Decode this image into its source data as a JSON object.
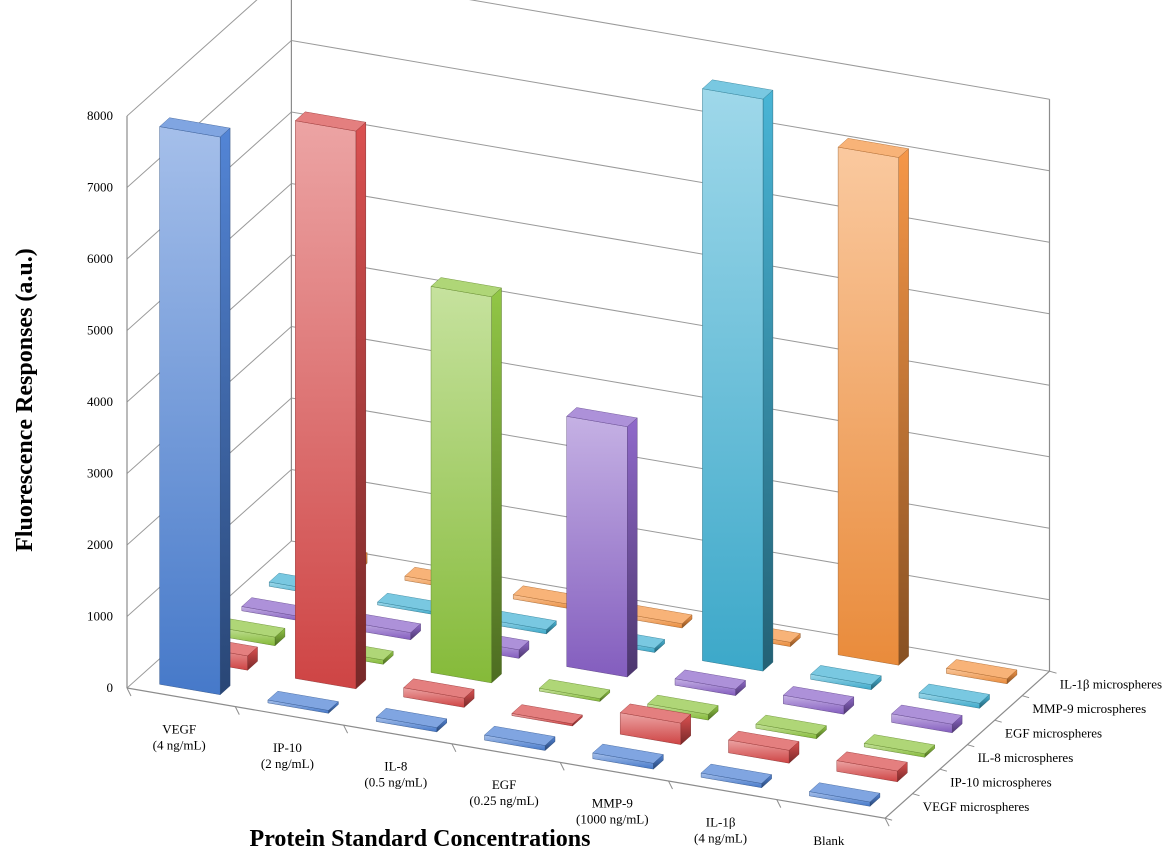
{
  "chart_data": {
    "type": "bar3d",
    "ylabel": "Fluorescence Responses (a.u.)",
    "xlabel": "Protein Standard Concentrations",
    "ylim": [
      0,
      8000
    ],
    "yticks": [
      "0",
      "1000",
      "2000",
      "3000",
      "4000",
      "5000",
      "6000",
      "7000",
      "8000"
    ],
    "grid": true,
    "categories": [
      {
        "line1": "VEGF",
        "line2": "(4 ng/mL)"
      },
      {
        "line1": "IP-10",
        "line2": "(2 ng/mL)"
      },
      {
        "line1": "IL-8",
        "line2": "(0.5 ng/mL)"
      },
      {
        "line1": "EGF",
        "line2": "(0.25 ng/mL)"
      },
      {
        "line1": "MMP-9",
        "line2": "(1000 ng/mL)"
      },
      {
        "line1": "IL-1β",
        "line2": "(4 ng/mL)"
      },
      {
        "line1": "Blank",
        "line2": ""
      }
    ],
    "series": [
      {
        "name": "VEGF microspheres",
        "color": "#4a7fd4",
        "values": [
          7800,
          40,
          60,
          70,
          80,
          60,
          60
        ]
      },
      {
        "name": "IP-10 microspheres",
        "color": "#d94848",
        "values": [
          200,
          7800,
          130,
          30,
          300,
          180,
          150
        ]
      },
      {
        "name": "IL-8 microspheres",
        "color": "#8cc43c",
        "values": [
          120,
          60,
          5400,
          40,
          80,
          60,
          50
        ]
      },
      {
        "name": "EGF microspheres",
        "color": "#8a62c8",
        "values": [
          60,
          100,
          120,
          3500,
          90,
          120,
          120
        ]
      },
      {
        "name": "MMP-9 microspheres",
        "color": "#3fb1d4",
        "values": [
          60,
          40,
          60,
          60,
          8000,
          70,
          70
        ]
      },
      {
        "name": "IL-1β microspheres",
        "color": "#f5923e",
        "values": [
          150,
          60,
          60,
          60,
          60,
          7100,
          70
        ]
      }
    ]
  }
}
